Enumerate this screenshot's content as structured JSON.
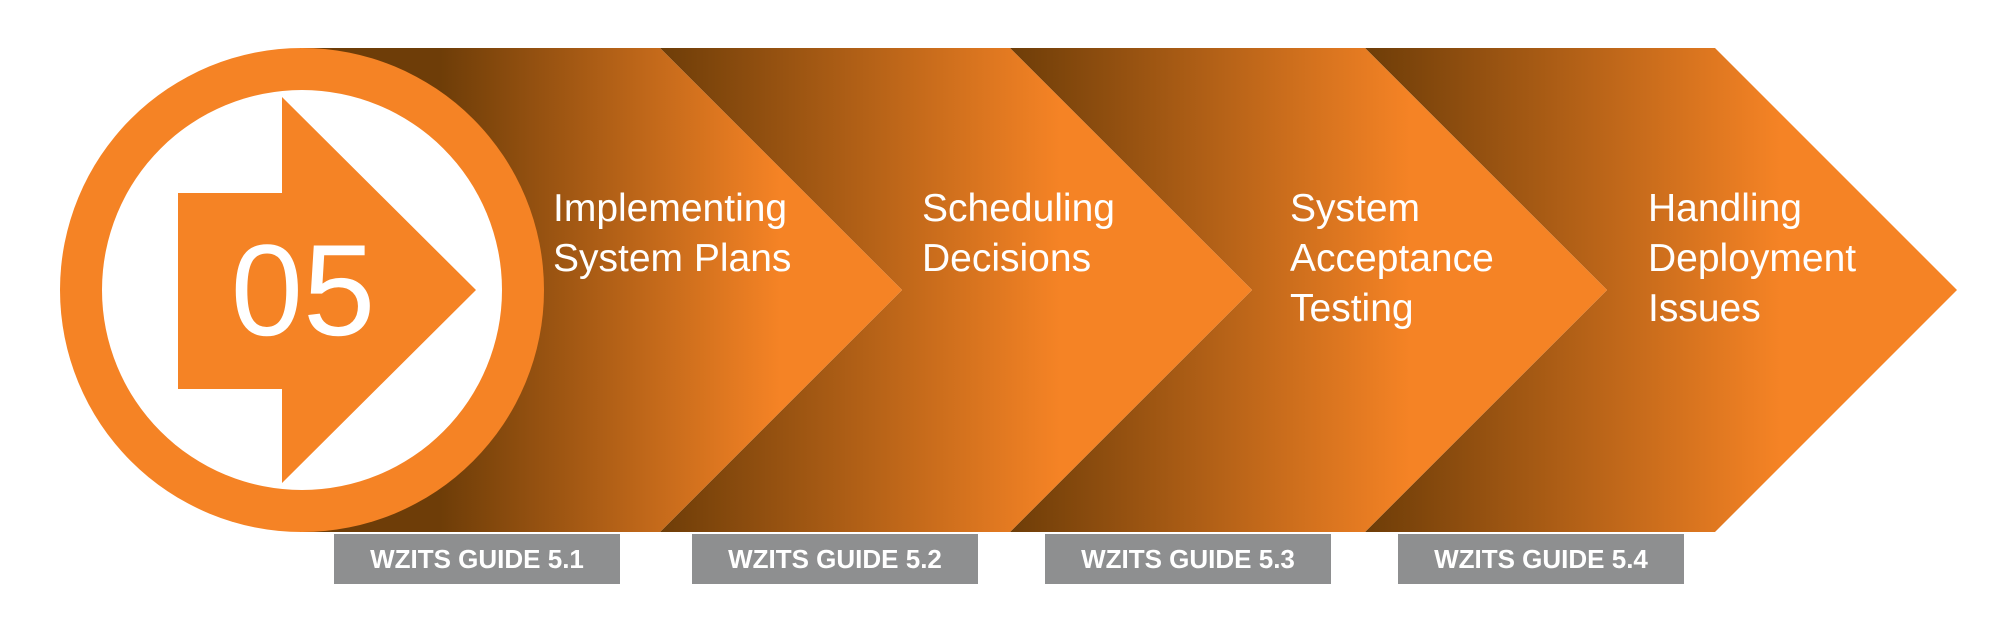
{
  "badge": {
    "number": "05"
  },
  "steps": [
    {
      "lines": [
        "Implementing",
        "System Plans"
      ],
      "guide": "WZITS GUIDE 5.1"
    },
    {
      "lines": [
        "Scheduling",
        "Decisions"
      ],
      "guide": "WZITS GUIDE 5.2"
    },
    {
      "lines": [
        "System",
        "Acceptance",
        "Testing"
      ],
      "guide": "WZITS GUIDE 5.3"
    },
    {
      "lines": [
        "Handling",
        "Deployment",
        "Issues"
      ],
      "guide": "WZITS GUIDE 5.4"
    }
  ],
  "colors": {
    "orange": "#f58325",
    "dark_brown": "#6e3d08",
    "white": "#ffffff",
    "label_gray": "#8e8f90"
  }
}
